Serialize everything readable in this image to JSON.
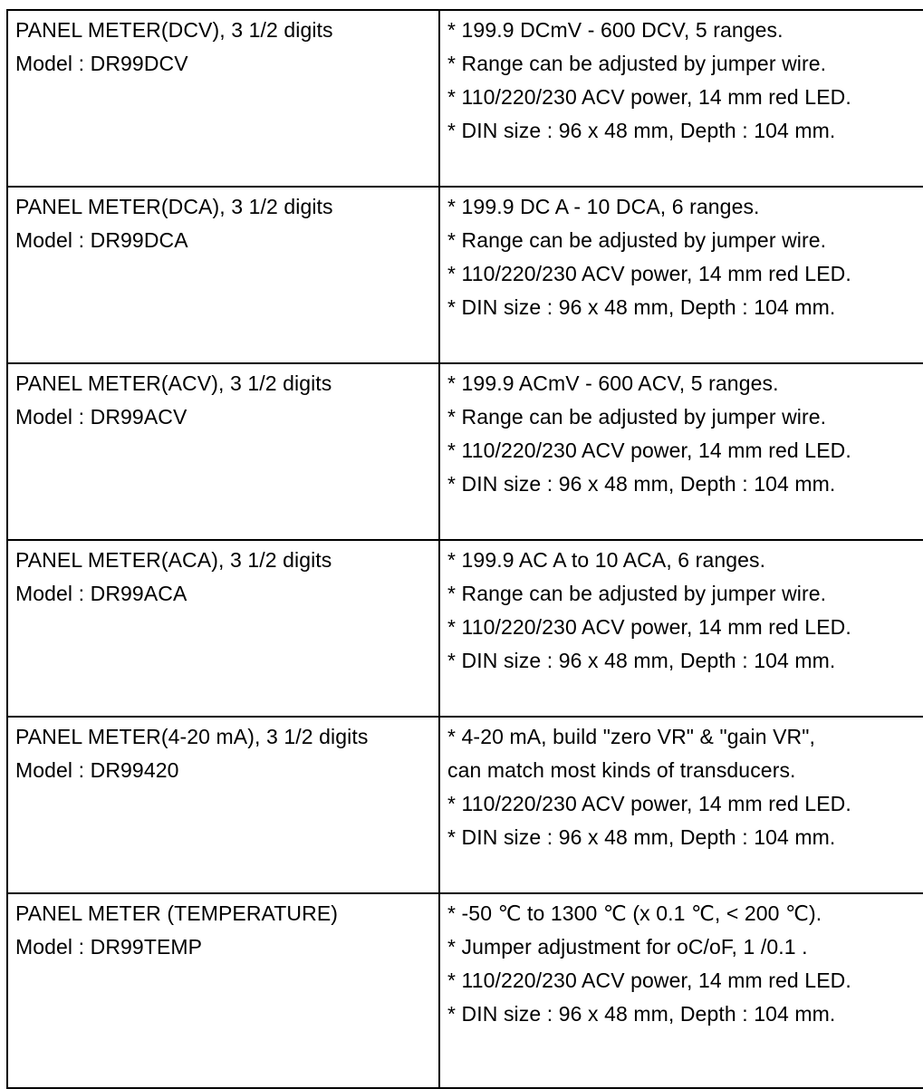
{
  "page": {
    "background_color": "#ffffff",
    "border_color": "#000000",
    "text_color": "#000000"
  },
  "table": {
    "rows": [
      {
        "name": "PANEL METER(DCV), 3 1/2 digits",
        "model": "Model : DR99DCV",
        "specs": [
          "* 199.9 DCmV - 600 DCV, 5 ranges.",
          "* Range can be adjusted by jumper wire.",
          "* 110/220/230 ACV power, 14 mm red LED.",
          "* DIN size : 96 x 48 mm, Depth : 104 mm."
        ]
      },
      {
        "name": "PANEL METER(DCA), 3 1/2 digits",
        "model": "Model : DR99DCA",
        "specs": [
          "* 199.9 DC A - 10 DCA, 6 ranges.",
          "* Range can be adjusted by jumper wire.",
          "* 110/220/230 ACV power, 14 mm red LED.",
          "* DIN size : 96 x 48 mm, Depth : 104 mm."
        ]
      },
      {
        "name": "PANEL METER(ACV), 3 1/2 digits",
        "model": "Model : DR99ACV",
        "specs": [
          "* 199.9 ACmV - 600 ACV, 5 ranges.",
          "* Range can be adjusted by jumper wire.",
          "* 110/220/230 ACV power, 14 mm red LED.",
          "* DIN size : 96 x 48 mm, Depth : 104 mm."
        ]
      },
      {
        "name": "PANEL METER(ACA), 3 1/2 digits",
        "model": "Model : DR99ACA",
        "specs": [
          "* 199.9 AC A to 10 ACA, 6 ranges.",
          "* Range can be adjusted by jumper wire.",
          "* 110/220/230 ACV power, 14 mm red LED.",
          "* DIN size : 96 x 48 mm, Depth : 104 mm."
        ]
      },
      {
        "name": "PANEL METER(4-20 mA), 3 1/2 digits",
        "model": "Model : DR99420",
        "specs": [
          "* 4-20 mA, build \"zero VR\" & \"gain VR\",",
          "can match most kinds of transducers.",
          "* 110/220/230 ACV power, 14 mm red LED.",
          "* DIN size : 96 x 48 mm, Depth : 104 mm."
        ]
      },
      {
        "name": "PANEL METER (TEMPERATURE)",
        "model": "Model : DR99TEMP",
        "specs": [
          "* -50 ℃ to 1300 ℃ (x 0.1 ℃, < 200 ℃).",
          "* Jumper adjustment for oC/oF, 1 /0.1 .",
          "* 110/220/230 ACV power, 14 mm red LED.",
          "* DIN size : 96 x 48 mm, Depth : 104 mm."
        ]
      }
    ]
  }
}
